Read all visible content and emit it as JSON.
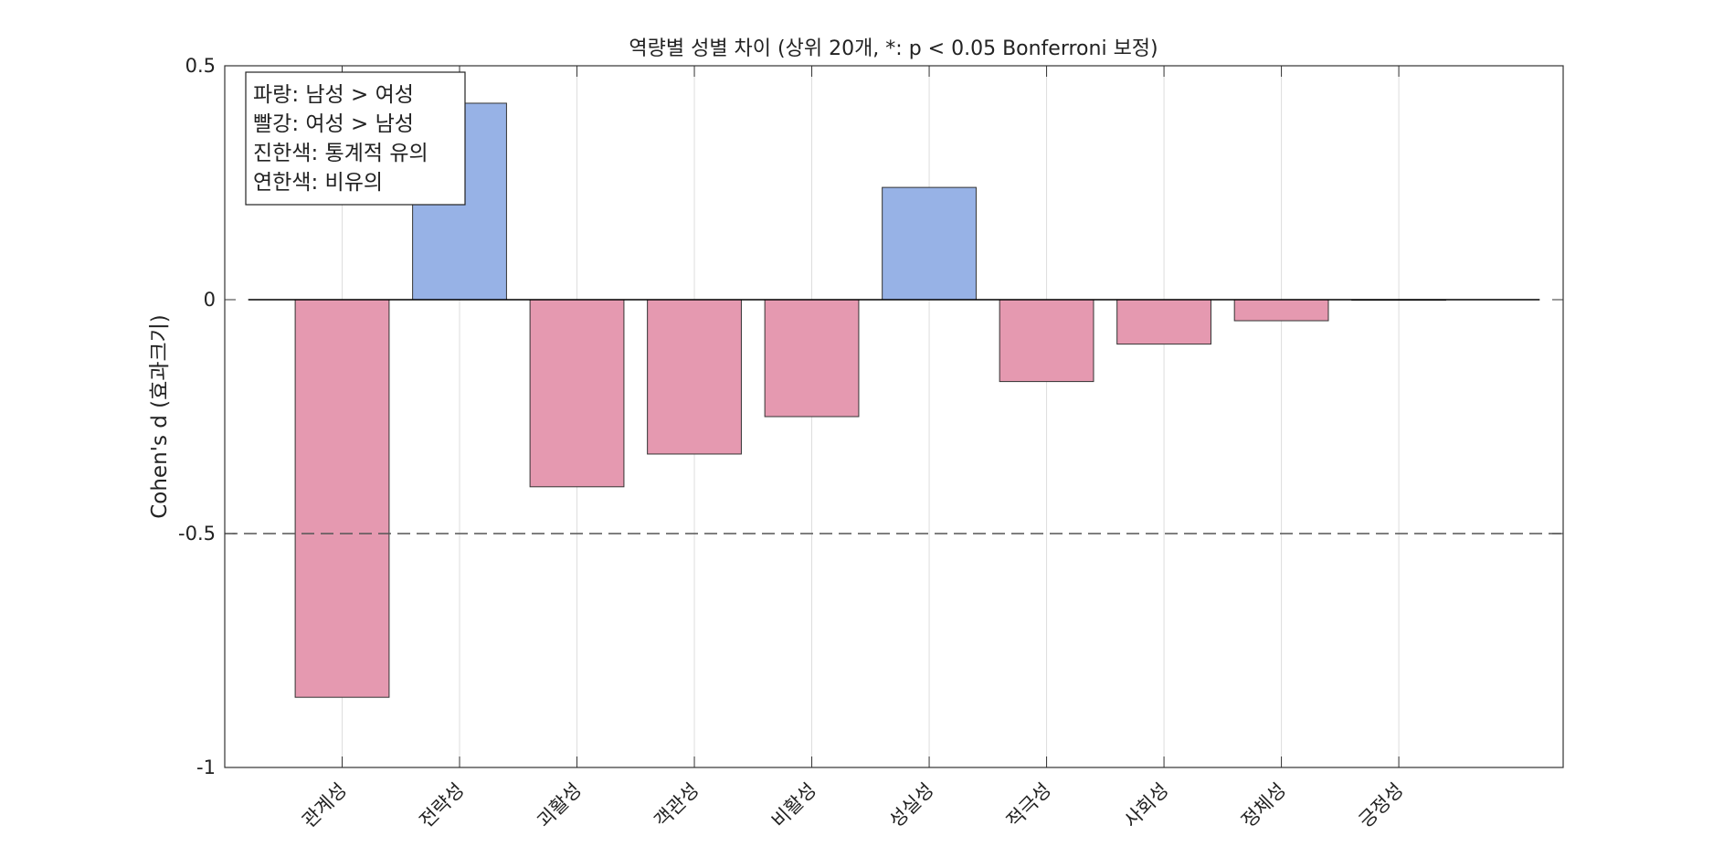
{
  "chart_data": {
    "type": "bar",
    "title": "역량별 성별 차이 (상위 20개, *: p < 0.05 Bonferroni 보정)",
    "xlabel": "",
    "ylabel": "Cohen's d (효과크기)",
    "categories": [
      "관계성",
      "전략성",
      "괴활성",
      "객관성",
      "비활성",
      "성실성",
      "적극성",
      "사회성",
      "정체성",
      "긍정성"
    ],
    "values": [
      -0.85,
      0.42,
      -0.4,
      -0.33,
      -0.25,
      0.24,
      -0.175,
      -0.095,
      -0.045,
      0.0
    ],
    "bar_colors": [
      "#E599B0",
      "#97B2E6",
      "#E599B0",
      "#E599B0",
      "#E599B0",
      "#97B2E6",
      "#E599B0",
      "#E599B0",
      "#E599B0",
      "#E599B0"
    ],
    "ylim": [
      -1,
      0.5
    ],
    "yticks": [
      -1,
      -0.5,
      0,
      0.5
    ],
    "ytick_labels": [
      "-1",
      "-0.5",
      "0",
      "0.5"
    ],
    "xlim": [
      0,
      11.4
    ],
    "reference_lines": [
      {
        "y": 0,
        "style": "solid",
        "color": "#000000"
      },
      {
        "y": -0.5,
        "style": "dashed",
        "color": "#555555"
      }
    ],
    "grid": "vertical",
    "legend": {
      "placement": "top-left",
      "lines": [
        "파랑: 남성 > 여성",
        "빨강: 여성 > 남성",
        "진한색: 통계적 유의",
        "연한색: 비유의"
      ]
    },
    "colors": {
      "male_greater": "#97B2E6",
      "female_greater": "#E599B0",
      "axes": "#333333",
      "grid": "#DDDDDD"
    }
  }
}
